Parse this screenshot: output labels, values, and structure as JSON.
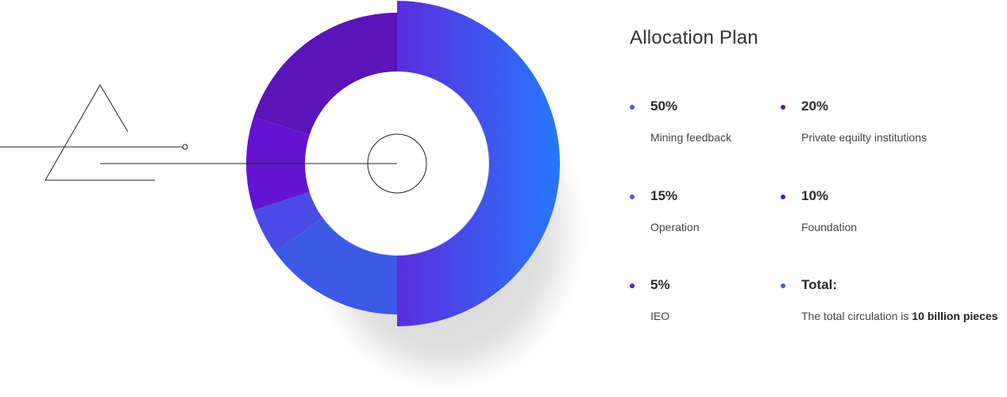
{
  "chart_data": {
    "type": "pie",
    "title": "Allocation Plan",
    "slices": [
      {
        "value": 50,
        "label": "50%",
        "name": "Mining feedback",
        "color_start": "#5b2ddc",
        "color_end": "#2677fb"
      },
      {
        "value": 15,
        "label": "15%",
        "name": "Operation",
        "color_start": "#3c5ae8",
        "color_end": "#3c5ae8"
      },
      {
        "value": 5,
        "label": "5%",
        "name": "IEO",
        "color_start": "#4a4be6",
        "color_end": "#4a4be6"
      },
      {
        "value": 10,
        "label": "10%",
        "name": "Foundation",
        "color_start": "#6314d2",
        "color_end": "#6314d2"
      },
      {
        "value": 20,
        "label": "20%",
        "name": "Private equilty institutions",
        "color_start": "#5a14b8",
        "color_end": "#5a14b8"
      }
    ],
    "total": {
      "heading": "Total:",
      "text_prefix": "The total circulation is ",
      "text_bold": "10 billion pieces"
    },
    "dot_colors": {
      "blue": "#3d5ee8",
      "purple": "#5b17c2"
    }
  }
}
